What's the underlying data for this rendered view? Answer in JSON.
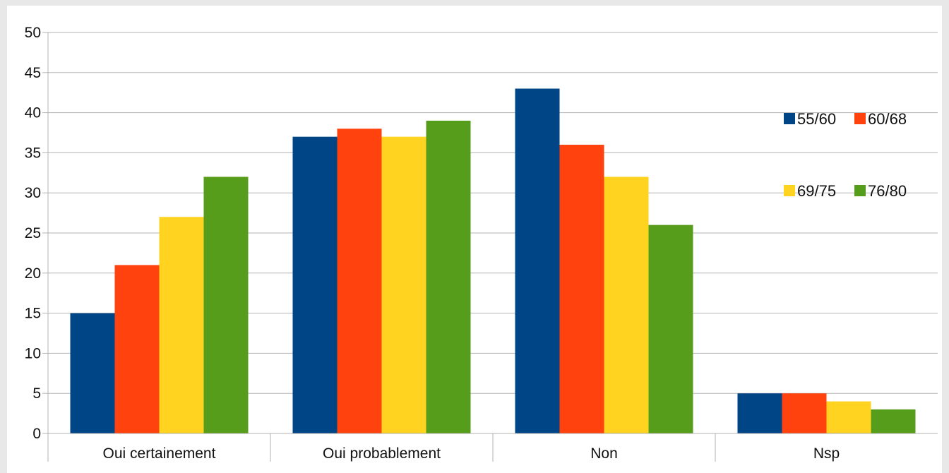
{
  "chart_data": {
    "type": "bar",
    "categories": [
      "Oui certainement",
      "Oui probablement",
      "Non",
      "Nsp"
    ],
    "series": [
      {
        "name": "55/60",
        "color": "#004586",
        "values": [
          15,
          37,
          43,
          5
        ]
      },
      {
        "name": "60/68",
        "color": "#ff420e",
        "values": [
          21,
          38,
          36,
          5
        ]
      },
      {
        "name": "69/75",
        "color": "#ffd320",
        "values": [
          27,
          37,
          32,
          4
        ]
      },
      {
        "name": "76/80",
        "color": "#579d1c",
        "values": [
          32,
          39,
          26,
          3
        ]
      }
    ],
    "title": "",
    "xlabel": "",
    "ylabel": "",
    "ylim": [
      0,
      50
    ],
    "yticks": [
      0,
      5,
      10,
      15,
      20,
      25,
      30,
      35,
      40,
      45,
      50
    ],
    "grid": true,
    "legend_position": "right"
  }
}
